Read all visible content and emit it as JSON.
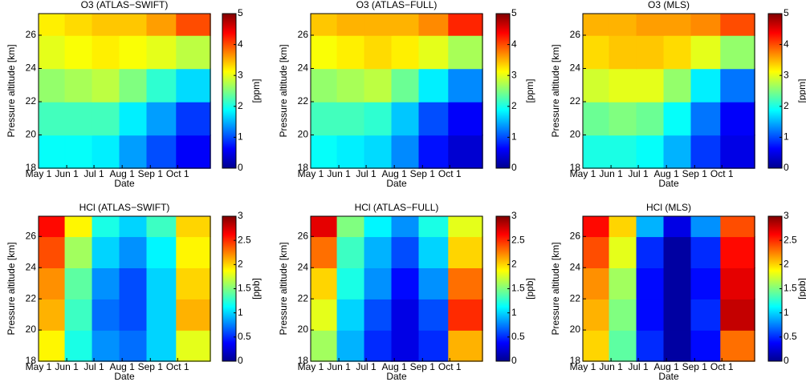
{
  "chart_data": [
    {
      "type": "heatmap",
      "title": "O3 (ATLAS−SWIFT)",
      "xlabel": "Date",
      "ylabel": "Pressure altitude [km]",
      "colormap": "jet",
      "x": [
        135,
        165,
        195,
        225,
        255,
        290
      ],
      "y": [
        19,
        21,
        23,
        25,
        27
      ],
      "z": [
        [
          1.9,
          1.9,
          1.8,
          1.4,
          1.0,
          0.6
        ],
        [
          2.2,
          2.2,
          2.2,
          1.8,
          1.4,
          0.9
        ],
        [
          2.6,
          2.7,
          2.8,
          2.5,
          2.1,
          1.7
        ],
        [
          3.0,
          3.1,
          3.2,
          3.1,
          3.0,
          2.8
        ],
        [
          3.2,
          3.3,
          3.4,
          3.4,
          3.6,
          4.0
        ]
      ],
      "xlim": [
        121,
        310
      ],
      "xticks": [
        {
          "value": 121,
          "label": "May 1"
        },
        {
          "value": 152,
          "label": "Jun 1"
        },
        {
          "value": 182,
          "label": "Jul 1"
        },
        {
          "value": 213,
          "label": "Aug 1"
        },
        {
          "value": 244,
          "label": "Sep 1"
        },
        {
          "value": 274,
          "label": "Oct 1"
        }
      ],
      "ylim": [
        18,
        27.3
      ],
      "yticks": [
        18,
        20,
        22,
        24,
        26
      ],
      "clim": [
        0,
        5
      ],
      "cticks": [
        0,
        1,
        2,
        3,
        4,
        5
      ],
      "clabel": "[ppm]"
    },
    {
      "type": "heatmap",
      "title": "O3 (ATLAS−FULL)",
      "xlabel": "Date",
      "ylabel": "Pressure altitude [km]",
      "colormap": "jet",
      "x": [
        135,
        165,
        195,
        225,
        255,
        290
      ],
      "y": [
        19,
        21,
        23,
        25,
        27
      ],
      "z": [
        [
          1.9,
          1.8,
          1.7,
          1.3,
          0.7,
          0.4
        ],
        [
          2.2,
          2.2,
          2.1,
          1.6,
          1.0,
          0.6
        ],
        [
          2.6,
          2.7,
          2.8,
          2.4,
          1.8,
          1.3
        ],
        [
          3.1,
          3.2,
          3.3,
          3.2,
          3.0,
          2.7
        ],
        [
          3.4,
          3.5,
          3.5,
          3.5,
          3.7,
          4.2
        ]
      ],
      "xlim": [
        121,
        310
      ],
      "xticks": [
        {
          "value": 121,
          "label": "May 1"
        },
        {
          "value": 152,
          "label": "Jun 1"
        },
        {
          "value": 182,
          "label": "Jul 1"
        },
        {
          "value": 213,
          "label": "Aug 1"
        },
        {
          "value": 244,
          "label": "Sep 1"
        },
        {
          "value": 274,
          "label": "Oct 1"
        }
      ],
      "ylim": [
        18,
        27.3
      ],
      "yticks": [
        18,
        20,
        22,
        24,
        26
      ],
      "clim": [
        0,
        5
      ],
      "cticks": [
        0,
        1,
        2,
        3,
        4,
        5
      ],
      "clabel": "[ppm]"
    },
    {
      "type": "heatmap",
      "title": "O3 (MLS)",
      "xlabel": "Date",
      "ylabel": "Pressure altitude [km]",
      "colormap": "jet",
      "x": [
        135,
        165,
        195,
        225,
        255,
        290
      ],
      "y": [
        19,
        21,
        23,
        25,
        27
      ],
      "z": [
        [
          2.0,
          2.0,
          1.9,
          1.5,
          0.9,
          0.5
        ],
        [
          2.4,
          2.5,
          2.4,
          1.9,
          1.2,
          0.6
        ],
        [
          2.9,
          3.0,
          3.0,
          2.6,
          1.8,
          1.2
        ],
        [
          3.3,
          3.4,
          3.4,
          3.3,
          3.0,
          2.6
        ],
        [
          3.5,
          3.5,
          3.6,
          3.6,
          3.7,
          4.0
        ]
      ],
      "xlim": [
        121,
        310
      ],
      "xticks": [
        {
          "value": 121,
          "label": "May 1"
        },
        {
          "value": 152,
          "label": "Jun 1"
        },
        {
          "value": 182,
          "label": "Jul 1"
        },
        {
          "value": 213,
          "label": "Aug 1"
        },
        {
          "value": 244,
          "label": "Sep 1"
        },
        {
          "value": 274,
          "label": "Oct 1"
        }
      ],
      "ylim": [
        18,
        27.3
      ],
      "yticks": [
        18,
        20,
        22,
        24,
        26
      ],
      "clim": [
        0,
        5
      ],
      "cticks": [
        0,
        1,
        2,
        3,
        4,
        5
      ],
      "clabel": "[ppm]"
    },
    {
      "type": "heatmap",
      "title": "HCl (ATLAS−SWIFT)",
      "xlabel": "Date",
      "ylabel": "Pressure altitude [km]",
      "colormap": "jet",
      "x": [
        135,
        165,
        195,
        225,
        255,
        290
      ],
      "y": [
        19,
        21,
        23,
        25,
        27
      ],
      "z": [
        [
          1.9,
          1.2,
          0.8,
          0.7,
          1.0,
          1.8
        ],
        [
          2.1,
          1.3,
          0.7,
          0.6,
          1.0,
          2.1
        ],
        [
          2.2,
          1.4,
          0.8,
          0.6,
          1.0,
          2.0
        ],
        [
          2.4,
          1.6,
          1.0,
          0.8,
          1.1,
          1.9
        ],
        [
          2.6,
          1.9,
          1.2,
          1.0,
          1.3,
          2.0
        ]
      ],
      "xlim": [
        121,
        310
      ],
      "xticks": [
        {
          "value": 121,
          "label": "May 1"
        },
        {
          "value": 152,
          "label": "Jun 1"
        },
        {
          "value": 182,
          "label": "Jul 1"
        },
        {
          "value": 213,
          "label": "Aug 1"
        },
        {
          "value": 244,
          "label": "Sep 1"
        },
        {
          "value": 274,
          "label": "Oct 1"
        }
      ],
      "ylim": [
        18,
        27.3
      ],
      "yticks": [
        18,
        20,
        22,
        24,
        26
      ],
      "clim": [
        0,
        3
      ],
      "cticks": [
        0,
        0.5,
        1,
        1.5,
        2,
        2.5,
        3
      ],
      "clabel": "[ppb]"
    },
    {
      "type": "heatmap",
      "title": "HCl (ATLAS−FULL)",
      "xlabel": "Date",
      "ylabel": "Pressure altitude [km]",
      "colormap": "jet",
      "x": [
        135,
        165,
        195,
        225,
        255,
        290
      ],
      "y": [
        19,
        21,
        23,
        25,
        27
      ],
      "z": [
        [
          1.6,
          0.9,
          0.5,
          0.3,
          0.5,
          2.1
        ],
        [
          1.8,
          1.0,
          0.6,
          0.3,
          0.6,
          2.5
        ],
        [
          2.0,
          1.2,
          0.8,
          0.4,
          0.8,
          2.3
        ],
        [
          2.3,
          1.3,
          0.9,
          0.6,
          1.0,
          2.0
        ],
        [
          2.7,
          1.5,
          1.1,
          0.8,
          1.2,
          1.8
        ]
      ],
      "xlim": [
        121,
        310
      ],
      "xticks": [
        {
          "value": 121,
          "label": "May 1"
        },
        {
          "value": 152,
          "label": "Jun 1"
        },
        {
          "value": 182,
          "label": "Jul 1"
        },
        {
          "value": 213,
          "label": "Aug 1"
        },
        {
          "value": 244,
          "label": "Sep 1"
        },
        {
          "value": 274,
          "label": "Oct 1"
        }
      ],
      "ylim": [
        18,
        27.3
      ],
      "yticks": [
        18,
        20,
        22,
        24,
        26
      ],
      "clim": [
        0,
        3
      ],
      "cticks": [
        0,
        0.5,
        1,
        1.5,
        2,
        2.5,
        3
      ],
      "clabel": "[ppb]"
    },
    {
      "type": "heatmap",
      "title": "HCl (MLS)",
      "xlabel": "Date",
      "ylabel": "Pressure altitude [km]",
      "colormap": "jet",
      "x": [
        135,
        165,
        195,
        225,
        255,
        290
      ],
      "y": [
        19,
        21,
        23,
        25,
        27
      ],
      "z": [
        [
          2.0,
          1.4,
          0.5,
          0.1,
          0.4,
          2.3
        ],
        [
          2.1,
          1.5,
          0.4,
          0.1,
          0.5,
          2.8
        ],
        [
          2.2,
          1.6,
          0.4,
          0.1,
          0.4,
          2.7
        ],
        [
          2.4,
          1.8,
          0.5,
          0.1,
          0.5,
          2.6
        ],
        [
          2.6,
          2.0,
          0.9,
          0.3,
          0.8,
          2.4
        ]
      ],
      "xlim": [
        121,
        310
      ],
      "xticks": [
        {
          "value": 121,
          "label": "May 1"
        },
        {
          "value": 152,
          "label": "Jun 1"
        },
        {
          "value": 182,
          "label": "Jul 1"
        },
        {
          "value": 213,
          "label": "Aug 1"
        },
        {
          "value": 244,
          "label": "Sep 1"
        },
        {
          "value": 274,
          "label": "Oct 1"
        }
      ],
      "ylim": [
        18,
        27.3
      ],
      "yticks": [
        18,
        20,
        22,
        24,
        26
      ],
      "clim": [
        0,
        3
      ],
      "cticks": [
        0,
        0.5,
        1,
        1.5,
        2,
        2.5,
        3
      ],
      "clabel": "[ppb]"
    }
  ]
}
